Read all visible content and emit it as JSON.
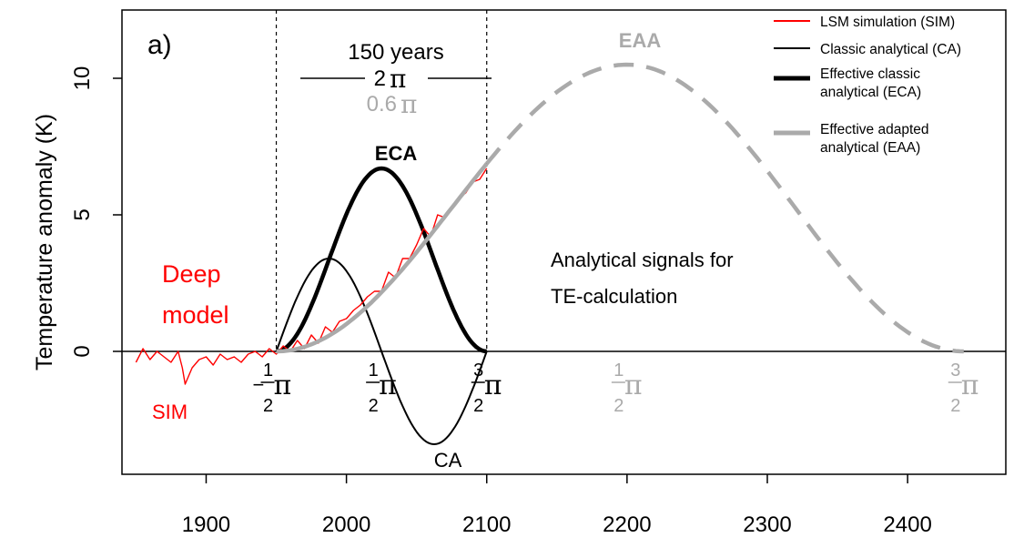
{
  "chart_data": {
    "type": "line",
    "panel_label": "a)",
    "xlabel": "",
    "ylabel": "Temperature anomaly (K)",
    "xlim": [
      1840,
      2470
    ],
    "ylim": [
      -4.5,
      12.5
    ],
    "x_ticks": [
      1900,
      2000,
      2100,
      2200,
      2300,
      2400
    ],
    "y_ticks": [
      0,
      5,
      10
    ],
    "grid": false,
    "legend_position": "top-right",
    "legend": [
      {
        "label": "LSM simulation (SIM)",
        "color": "#ff0000",
        "style": "thin"
      },
      {
        "label": "Classic analytical (CA)",
        "color": "#000000",
        "style": "thin"
      },
      {
        "label": "Effective classic analytical (ECA)",
        "color": "#000000",
        "style": "thick"
      },
      {
        "label": "Effective adapted analytical (EAA)",
        "color": "#aaaaaa",
        "style": "thick"
      }
    ],
    "series": [
      {
        "name": "LSM simulation (SIM)",
        "color": "#ff0000",
        "x": [
          1850,
          1855,
          1860,
          1865,
          1870,
          1875,
          1880,
          1883,
          1885,
          1890,
          1895,
          1900,
          1905,
          1910,
          1915,
          1920,
          1925,
          1930,
          1935,
          1940,
          1945,
          1950,
          1955,
          1960,
          1965,
          1970,
          1975,
          1980,
          1985,
          1990,
          1995,
          2000,
          2005,
          2010,
          2015,
          2020,
          2025,
          2030,
          2035,
          2040,
          2045,
          2050,
          2055,
          2060,
          2065,
          2070,
          2075,
          2080,
          2085,
          2090,
          2095,
          2100
        ],
        "y": [
          -0.4,
          0.1,
          -0.3,
          0.0,
          -0.2,
          -0.4,
          0.0,
          -0.6,
          -1.2,
          -0.6,
          -0.3,
          -0.2,
          -0.5,
          -0.1,
          -0.3,
          -0.2,
          -0.4,
          -0.1,
          0.0,
          -0.2,
          0.1,
          -0.1,
          0.2,
          0.0,
          0.4,
          0.1,
          0.6,
          0.3,
          0.9,
          0.7,
          1.1,
          1.2,
          1.5,
          1.7,
          2.0,
          2.2,
          2.2,
          2.9,
          2.7,
          3.4,
          3.4,
          3.9,
          4.5,
          4.2,
          5.0,
          4.9,
          5.3,
          5.6,
          5.8,
          6.2,
          6.3,
          6.7
        ]
      }
    ],
    "curves": {
      "CA": {
        "label": "CA",
        "t0": 1950,
        "t1": 2100,
        "amplitude": 3.4
      },
      "ECA": {
        "label": "ECA",
        "t0": 1950,
        "t1": 2100,
        "amplitude": 6.7
      },
      "EAA": {
        "label": "EAA",
        "t0": 1950,
        "t1": 2440,
        "peak": 2200,
        "amplitude": 10.5,
        "solid_until": 2100
      }
    },
    "dashed_vlines": [
      1950,
      2100
    ],
    "annotations": {
      "period": "150 years",
      "two_pi": "2",
      "zero_six_pi": "0.6",
      "pi": "π",
      "minus": "−",
      "one": "1",
      "two": "2",
      "three": "3",
      "sim_label": "SIM",
      "deep_model_1": "Deep",
      "deep_model_2": "model",
      "analytical_1": "Analytical signals for",
      "analytical_2": "TE-calculation"
    }
  }
}
